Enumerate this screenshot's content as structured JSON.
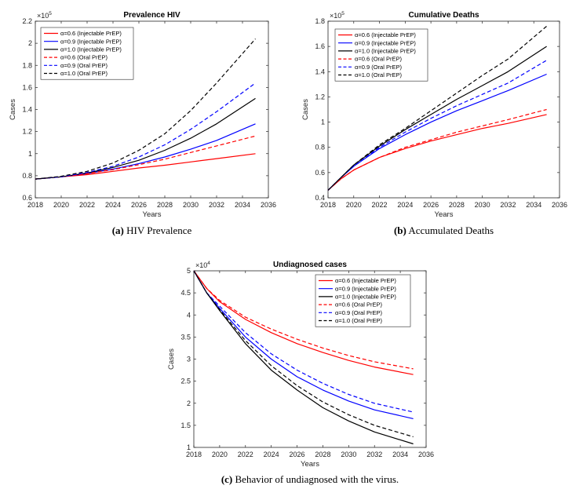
{
  "chart_data": [
    {
      "type": "line",
      "title": "Prevalence HIV",
      "xlabel": "Years",
      "ylabel": "Cases",
      "exponent": "×10",
      "exponent_power": "5",
      "xlim": [
        2018,
        2036
      ],
      "ylim": [
        0.6,
        2.2
      ],
      "xticks": [
        2018,
        2020,
        2022,
        2024,
        2026,
        2028,
        2030,
        2032,
        2034,
        2036
      ],
      "yticks": [
        0.6,
        0.8,
        1,
        1.2,
        1.4,
        1.6,
        1.8,
        2,
        2.2
      ],
      "legend_position": "top-left",
      "caption_label": "(a)",
      "caption_text": "HIV Prevalence",
      "x": [
        2018,
        2020,
        2022,
        2024,
        2026,
        2028,
        2030,
        2032,
        2035
      ],
      "series": [
        {
          "name": "α=0.6 (Injectable PrEP)",
          "color": "#ff0000",
          "dashed": false,
          "values": [
            0.77,
            0.79,
            0.81,
            0.84,
            0.87,
            0.895,
            0.925,
            0.955,
            1.0
          ]
        },
        {
          "name": "α=0.9 (Injectable PrEP)",
          "color": "#0000ff",
          "dashed": false,
          "values": [
            0.77,
            0.79,
            0.82,
            0.86,
            0.91,
            0.97,
            1.04,
            1.12,
            1.27
          ]
        },
        {
          "name": "α=1.0 (Injectable PrEP)",
          "color": "#000000",
          "dashed": false,
          "values": [
            0.77,
            0.79,
            0.825,
            0.875,
            0.94,
            1.03,
            1.14,
            1.27,
            1.5
          ]
        },
        {
          "name": "α=0.6 (Oral PrEP)",
          "color": "#ff0000",
          "dashed": true,
          "values": [
            0.77,
            0.79,
            0.82,
            0.855,
            0.9,
            0.95,
            1.01,
            1.07,
            1.16
          ]
        },
        {
          "name": "α=0.9 (Oral PrEP)",
          "color": "#0000ff",
          "dashed": true,
          "values": [
            0.77,
            0.79,
            0.83,
            0.885,
            0.97,
            1.08,
            1.22,
            1.38,
            1.64
          ]
        },
        {
          "name": "α=1.0 (Oral PrEP)",
          "color": "#000000",
          "dashed": true,
          "values": [
            0.77,
            0.795,
            0.84,
            0.915,
            1.03,
            1.18,
            1.39,
            1.64,
            2.04
          ]
        }
      ]
    },
    {
      "type": "line",
      "title": "Cumulative Deaths",
      "xlabel": "Years",
      "ylabel": "Cases",
      "exponent": "×10",
      "exponent_power": "5",
      "xlim": [
        2018,
        2036
      ],
      "ylim": [
        0.4,
        1.8
      ],
      "xticks": [
        2018,
        2020,
        2022,
        2024,
        2026,
        2028,
        2030,
        2032,
        2034,
        2036
      ],
      "yticks": [
        0.4,
        0.6,
        0.8,
        1,
        1.2,
        1.4,
        1.6,
        1.8
      ],
      "legend_position": "top-left",
      "caption_label": "(b)",
      "caption_text": "Accumulated Deaths",
      "x": [
        2018,
        2019,
        2020,
        2022,
        2024,
        2026,
        2028,
        2030,
        2032,
        2035
      ],
      "series": [
        {
          "name": "α=0.6 (Injectable PrEP)",
          "color": "#ff0000",
          "dashed": false,
          "values": [
            0.46,
            0.55,
            0.62,
            0.72,
            0.79,
            0.85,
            0.9,
            0.95,
            0.99,
            1.06
          ]
        },
        {
          "name": "α=0.9 (Injectable PrEP)",
          "color": "#0000ff",
          "dashed": false,
          "values": [
            0.46,
            0.56,
            0.65,
            0.79,
            0.9,
            1.0,
            1.09,
            1.17,
            1.25,
            1.38
          ]
        },
        {
          "name": "α=1.0 (Injectable PrEP)",
          "color": "#000000",
          "dashed": false,
          "values": [
            0.46,
            0.56,
            0.66,
            0.81,
            0.94,
            1.06,
            1.18,
            1.29,
            1.4,
            1.6
          ]
        },
        {
          "name": "α=0.6 (Oral PrEP)",
          "color": "#ff0000",
          "dashed": true,
          "values": [
            0.46,
            0.55,
            0.62,
            0.72,
            0.8,
            0.86,
            0.92,
            0.97,
            1.02,
            1.1
          ]
        },
        {
          "name": "α=0.9 (Oral PrEP)",
          "color": "#0000ff",
          "dashed": true,
          "values": [
            0.46,
            0.56,
            0.65,
            0.8,
            0.92,
            1.03,
            1.13,
            1.22,
            1.31,
            1.49
          ]
        },
        {
          "name": "α=1.0 (Oral PrEP)",
          "color": "#000000",
          "dashed": true,
          "values": [
            0.46,
            0.56,
            0.66,
            0.82,
            0.95,
            1.09,
            1.23,
            1.37,
            1.5,
            1.76
          ]
        }
      ]
    },
    {
      "type": "line",
      "title": "Undiagnosed cases",
      "xlabel": "Years",
      "ylabel": "Cases",
      "exponent": "×10",
      "exponent_power": "4",
      "xlim": [
        2018,
        2036
      ],
      "ylim": [
        1,
        5
      ],
      "xticks": [
        2018,
        2020,
        2022,
        2024,
        2026,
        2028,
        2030,
        2032,
        2034,
        2036
      ],
      "yticks": [
        1,
        1.5,
        2,
        2.5,
        3,
        3.5,
        4,
        4.5,
        5
      ],
      "legend_position": "top-right",
      "caption_label": "(c)",
      "caption_text": "Behavior of undiagnosed with the virus.",
      "x": [
        2018,
        2019,
        2020,
        2022,
        2024,
        2026,
        2028,
        2030,
        2032,
        2035
      ],
      "series": [
        {
          "name": "α=0.6 (Injectable PrEP)",
          "color": "#ff0000",
          "dashed": false,
          "values": [
            5.0,
            4.6,
            4.3,
            3.9,
            3.6,
            3.35,
            3.15,
            2.97,
            2.82,
            2.65
          ]
        },
        {
          "name": "α=0.9 (Injectable PrEP)",
          "color": "#0000ff",
          "dashed": false,
          "values": [
            5.0,
            4.5,
            4.15,
            3.5,
            3.0,
            2.6,
            2.3,
            2.05,
            1.85,
            1.65
          ]
        },
        {
          "name": "α=1.0 (Injectable PrEP)",
          "color": "#000000",
          "dashed": false,
          "values": [
            5.0,
            4.5,
            4.1,
            3.35,
            2.75,
            2.3,
            1.9,
            1.6,
            1.35,
            1.08
          ]
        },
        {
          "name": "α=0.6 (Oral PrEP)",
          "color": "#ff0000",
          "dashed": true,
          "values": [
            5.0,
            4.6,
            4.33,
            3.95,
            3.68,
            3.45,
            3.25,
            3.08,
            2.94,
            2.78
          ]
        },
        {
          "name": "α=0.9 (Oral PrEP)",
          "color": "#0000ff",
          "dashed": true,
          "values": [
            5.0,
            4.5,
            4.2,
            3.6,
            3.12,
            2.75,
            2.45,
            2.2,
            2.0,
            1.8
          ]
        },
        {
          "name": "α=1.0 (Oral PrEP)",
          "color": "#000000",
          "dashed": true,
          "values": [
            5.0,
            4.5,
            4.12,
            3.42,
            2.85,
            2.4,
            2.03,
            1.74,
            1.5,
            1.24
          ]
        }
      ]
    }
  ]
}
